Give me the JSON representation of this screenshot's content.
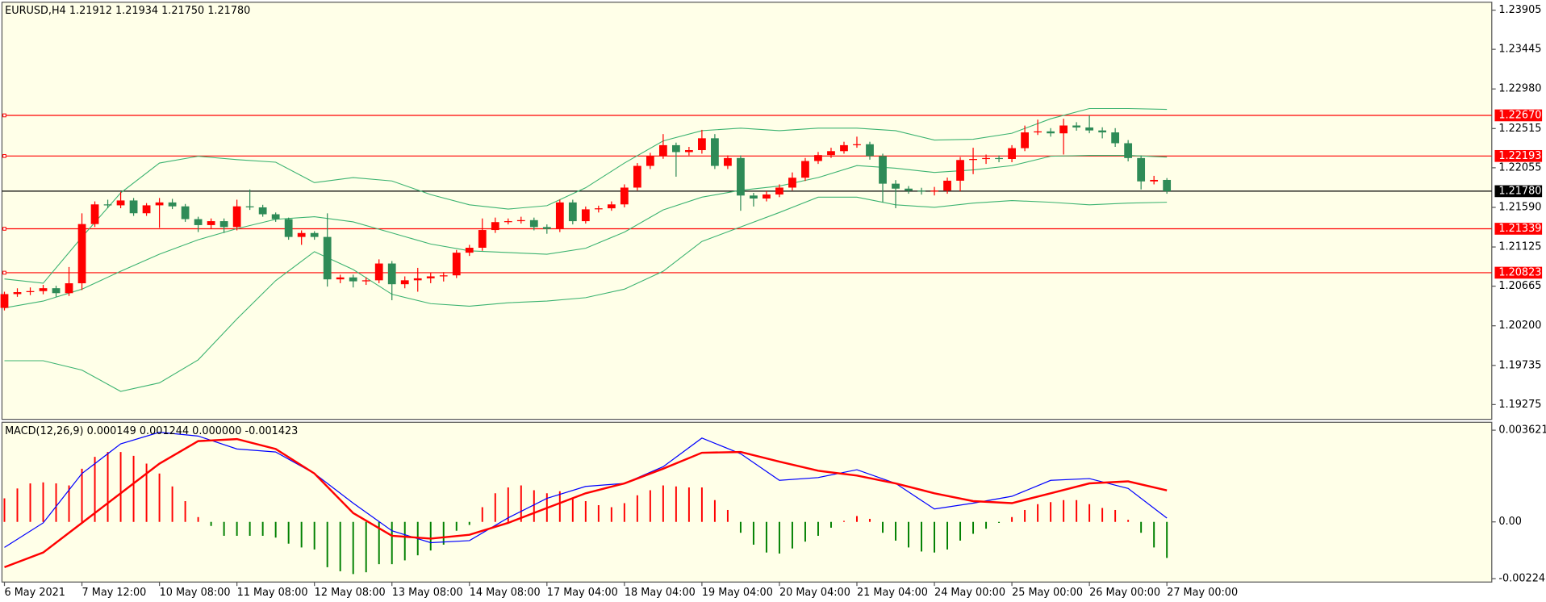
{
  "chart_data": {
    "type": "candlestick",
    "title": "EURUSD,H4  1.21912 1.21934 1.21750 1.21780",
    "categories": [
      "6 May 2021",
      null,
      null,
      null,
      null,
      null,
      "7 May 12:00",
      null,
      null,
      null,
      null,
      null,
      "10 May 08:00",
      null,
      null,
      null,
      null,
      null,
      "11 May 08:00",
      null,
      null,
      null,
      null,
      null,
      "12 May 08:00",
      null,
      null,
      null,
      null,
      null,
      "13 May 08:00",
      null,
      null,
      null,
      null,
      null,
      "14 May 08:00",
      null,
      null,
      null,
      null,
      null,
      "17 May 04:00",
      null,
      null,
      null,
      null,
      null,
      "18 May 04:00",
      null,
      null,
      null,
      null,
      null,
      "19 May 04:00",
      null,
      null,
      null,
      null,
      null,
      "20 May 04:00",
      null,
      null,
      null,
      null,
      null,
      "21 May 04:00",
      null,
      null,
      null,
      null,
      null,
      "24 May 00:00",
      null,
      null,
      null,
      null,
      null,
      "25 May 00:00",
      null,
      null,
      null,
      null,
      null,
      "26 May 00:00",
      null,
      null,
      null,
      null,
      null,
      "27 May 00:00"
    ],
    "open": [
      1.2041,
      1.20572,
      1.20595,
      1.20607,
      1.20641,
      1.20583,
      1.20699,
      1.21394,
      1.21625,
      1.21614,
      1.21671,
      1.21521,
      1.21614,
      1.21648,
      1.21602,
      1.21452,
      1.21382,
      1.21428,
      1.21359,
      1.21602,
      1.2159,
      1.21509,
      1.21452,
      1.21243,
      1.21289,
      1.21243,
      1.20745,
      1.20768,
      1.20722,
      1.20734,
      1.20931,
      1.20688,
      1.20734,
      1.20757,
      1.2078,
      1.20792,
      1.21058,
      1.21116,
      1.21324,
      1.21417,
      1.21428,
      1.2144,
      1.21359,
      1.21336,
      1.21648,
      1.21428,
      1.21567,
      1.21579,
      1.21625,
      1.21822,
      1.22077,
      1.22192,
      1.2232,
      1.22239,
      1.22262,
      1.22401,
      1.22077,
      1.22169,
      1.21729,
      1.21694,
      1.21741,
      1.21822,
      1.21938,
      1.22134,
      1.22204,
      1.2225,
      1.2232,
      1.22331,
      1.22192,
      1.21868,
      1.2181,
      1.21787,
      1.21775,
      1.21787,
      1.21903,
      1.22146,
      1.22158,
      1.22169,
      1.22158,
      1.22285,
      1.2247,
      1.22482,
      1.22459,
      1.22551,
      1.22528,
      1.22493,
      1.2247,
      1.22343,
      1.22169,
      1.21895,
      1.21912
    ],
    "high": [
      1.206,
      1.2064,
      1.2065,
      1.2068,
      1.2067,
      1.2089,
      1.2152,
      1.2166,
      1.2168,
      1.2177,
      1.217,
      1.2164,
      1.217,
      1.2169,
      1.2163,
      1.2148,
      1.2146,
      1.2146,
      1.2168,
      1.218,
      1.2162,
      1.2153,
      1.2147,
      1.2132,
      1.2131,
      1.2152,
      1.208,
      1.208,
      1.2077,
      1.2098,
      1.2096,
      1.2078,
      1.2088,
      1.2082,
      1.2083,
      1.2109,
      1.2115,
      1.2146,
      1.2147,
      1.2146,
      1.2148,
      1.2147,
      1.2139,
      1.2168,
      1.2168,
      1.216,
      1.2161,
      1.2166,
      1.2186,
      1.2211,
      1.2223,
      1.2245,
      1.2235,
      1.223,
      1.225,
      1.2245,
      1.222,
      1.222,
      1.2176,
      1.2178,
      1.2186,
      1.22,
      1.2217,
      1.2224,
      1.2229,
      1.2236,
      1.2242,
      1.2236,
      1.2222,
      1.2191,
      1.2184,
      1.2182,
      1.2183,
      1.2194,
      1.2218,
      1.2229,
      1.2221,
      1.222,
      1.2232,
      1.2255,
      1.2262,
      1.2252,
      1.2263,
      1.2259,
      1.2267,
      1.2253,
      1.2252,
      1.2238,
      1.222,
      1.2196,
      1.21934
    ],
    "low": [
      1.2038,
      1.2054,
      1.2056,
      1.2057,
      1.2054,
      1.2055,
      1.2062,
      1.2136,
      1.2158,
      1.2158,
      1.2149,
      1.2149,
      1.2135,
      1.2157,
      1.2142,
      1.213,
      1.2134,
      1.2129,
      1.2132,
      1.2156,
      1.2148,
      1.2142,
      1.2121,
      1.2115,
      1.2121,
      1.2066,
      1.207,
      1.2065,
      1.2068,
      1.207,
      1.205,
      1.2064,
      1.206,
      1.207,
      1.2072,
      1.2076,
      1.2102,
      1.2108,
      1.2129,
      1.2139,
      1.214,
      1.2132,
      1.2128,
      1.213,
      1.2139,
      1.214,
      1.2153,
      1.2155,
      1.2159,
      1.2179,
      1.2204,
      1.2216,
      1.2195,
      1.222,
      1.2222,
      1.2204,
      1.2204,
      1.2155,
      1.216,
      1.2166,
      1.2171,
      1.2179,
      1.219,
      1.221,
      1.2217,
      1.2222,
      1.2229,
      1.2215,
      1.2165,
      1.2158,
      1.2175,
      1.2174,
      1.2173,
      1.2175,
      1.2178,
      1.2198,
      1.221,
      1.2212,
      1.2212,
      1.2225,
      1.2244,
      1.2242,
      1.2221,
      1.2249,
      1.2246,
      1.224,
      1.223,
      1.2213,
      1.218,
      1.2186,
      1.2175
    ],
    "close": [
      1.20572,
      1.20595,
      1.20607,
      1.20641,
      1.20583,
      1.20699,
      1.21394,
      1.21625,
      1.21614,
      1.21671,
      1.21521,
      1.21614,
      1.21648,
      1.21602,
      1.21452,
      1.21382,
      1.21428,
      1.21359,
      1.21602,
      1.2159,
      1.21509,
      1.21452,
      1.21243,
      1.21289,
      1.21243,
      1.20745,
      1.20768,
      1.20722,
      1.20734,
      1.20931,
      1.20688,
      1.20734,
      1.20757,
      1.2078,
      1.20792,
      1.21058,
      1.21116,
      1.21324,
      1.21417,
      1.21428,
      1.2144,
      1.21359,
      1.21336,
      1.21648,
      1.21428,
      1.21567,
      1.21579,
      1.21625,
      1.21822,
      1.22077,
      1.22192,
      1.2232,
      1.22239,
      1.22262,
      1.22401,
      1.22077,
      1.22169,
      1.21729,
      1.21694,
      1.21741,
      1.21822,
      1.21938,
      1.22134,
      1.22204,
      1.2225,
      1.2232,
      1.22331,
      1.22192,
      1.21868,
      1.2181,
      1.21787,
      1.21775,
      1.21787,
      1.21903,
      1.22146,
      1.22158,
      1.22169,
      1.22158,
      1.22285,
      1.2247,
      1.22482,
      1.22459,
      1.22551,
      1.22528,
      1.22493,
      1.2247,
      1.22343,
      1.22169,
      1.21895,
      1.21912,
      1.2178
    ],
    "up_color": "#ff0000",
    "down_color": "#2e8b57",
    "ylim": [
      1.19102,
      1.23998
    ],
    "yticks": [
      1.23905,
      1.23445,
      {
        "value": 1.2298,
        "label": "1.22980"
      },
      1.22515,
      1.22055,
      {
        "value": 1.2159,
        "label": "1.21590"
      },
      1.21125,
      1.20665,
      {
        "value": 1.202,
        "label": "1.20200"
      },
      1.19735,
      1.19275
    ],
    "levels": [
      {
        "value": 1.2267,
        "label": "1.22670"
      },
      {
        "value": 1.22193,
        "label": "1.22193"
      },
      {
        "value": 1.21339,
        "label": "1.21339"
      },
      {
        "value": 1.20823,
        "label": "1.20823"
      }
    ],
    "level_color": "#ff0000",
    "current": {
      "value": 1.2178,
      "label": "1.21780"
    },
    "band_at": [
      0,
      3,
      6,
      9,
      12,
      15,
      18,
      21,
      24,
      27,
      30,
      33,
      36,
      39,
      42,
      45,
      48,
      51,
      54,
      57,
      60,
      63,
      66,
      69,
      72,
      75,
      78,
      81,
      84,
      87,
      90
    ],
    "bands": {
      "color": "#3cb371",
      "upper": [
        1.2075,
        1.207,
        1.2124,
        1.2176,
        1.2211,
        1.2219,
        1.2215,
        1.2212,
        1.2188,
        1.2194,
        1.219,
        1.2174,
        1.2162,
        1.2157,
        1.2161,
        1.2182,
        1.2211,
        1.2237,
        1.2249,
        1.2252,
        1.2249,
        1.2252,
        1.2252,
        1.2249,
        1.2238,
        1.2239,
        1.2246,
        1.2263,
        1.2275,
        1.2275,
        1.2274
      ],
      "middle": [
        1.2041,
        1.2049,
        1.2063,
        1.2084,
        1.2104,
        1.2121,
        1.2134,
        1.2145,
        1.2148,
        1.2142,
        1.2129,
        1.2116,
        1.2108,
        1.2106,
        1.2104,
        1.2111,
        1.213,
        1.2156,
        1.2171,
        1.2179,
        1.2184,
        1.2194,
        1.2208,
        1.2205,
        1.22,
        1.2203,
        1.2208,
        1.2219,
        1.222,
        1.222,
        1.2218
      ],
      "lower": [
        1.1979,
        1.1979,
        1.1968,
        1.1943,
        1.1953,
        1.198,
        1.2028,
        1.2073,
        1.2107,
        1.2086,
        1.2057,
        1.2046,
        1.2043,
        1.2047,
        1.2049,
        1.2053,
        1.2063,
        1.2084,
        1.2119,
        1.2136,
        1.2153,
        1.2171,
        1.2171,
        1.2162,
        1.2159,
        1.2164,
        1.2167,
        1.2165,
        1.2162,
        1.2164,
        1.2165
      ]
    },
    "macd": {
      "title": "MACD(12,26,9) 0.000149 0.001244 0.000000 -0.001423",
      "ylim": [
        -0.002375,
        0.003933
      ],
      "yticks": [
        0.003621,
        {
          "value": 0,
          "label": "0.00"
        },
        -0.002241
      ],
      "positive_color": "#ff0000",
      "negative_color": "#008000",
      "histogram": [
        0.00093,
        0.00132,
        0.00152,
        0.00156,
        0.00152,
        0.00144,
        0.0021,
        0.00257,
        0.00276,
        0.00276,
        0.00261,
        0.0023,
        0.00191,
        0.0014,
        0.00082,
        0.00019,
        -0.00016,
        -0.00055,
        -0.00055,
        -0.00055,
        -0.00055,
        -0.00062,
        -0.00086,
        -0.00101,
        -0.00109,
        -0.00179,
        -0.00195,
        -0.00206,
        -0.00199,
        -0.00167,
        -0.00167,
        -0.00152,
        -0.00132,
        -0.00113,
        -0.0009,
        -0.00035,
        -0.00012,
        0.00058,
        0.00113,
        0.00136,
        0.00144,
        0.00125,
        0.00113,
        0.00121,
        0.00093,
        0.00082,
        0.00066,
        0.00058,
        0.00074,
        0.00105,
        0.00125,
        0.00144,
        0.0014,
        0.00136,
        0.00136,
        0.00086,
        0.00047,
        -0.00043,
        -0.0009,
        -0.00121,
        -0.00125,
        -0.00105,
        -0.00078,
        -0.00055,
        -0.00023,
        4e-05,
        0.00023,
        0.00012,
        -0.00043,
        -0.00074,
        -0.00101,
        -0.00117,
        -0.00121,
        -0.00109,
        -0.00074,
        -0.00047,
        -0.00027,
        -4e-05,
        0.00019,
        0.00047,
        0.0007,
        0.00078,
        0.00086,
        0.00086,
        0.0007,
        0.00055,
        0.00047,
        8e-05,
        -0.00043,
        -0.00101,
        -0.001423
      ],
      "main_color": "#0000ff",
      "main": [
        -0.00101,
        -4e-05,
        0.00191,
        0.00308,
        0.00354,
        0.00339,
        0.00288,
        0.00276,
        0.00191,
        0.00074,
        -0.00035,
        -0.00082,
        -0.00074,
        0.00016,
        0.00093,
        0.0014,
        0.00152,
        0.00218,
        0.00331,
        0.00269,
        0.00164,
        0.00175,
        0.00206,
        0.00152,
        0.00051,
        0.00074,
        0.00101,
        0.00164,
        0.00171,
        0.00132,
        0.000149
      ],
      "signal_color": "#ff0000",
      "signal": [
        -0.00179,
        -0.00121,
        -4e-05,
        0.00113,
        0.0023,
        0.00319,
        0.00327,
        0.00288,
        0.00191,
        0.00035,
        -0.00055,
        -0.00066,
        -0.00051,
        -4e-05,
        0.00055,
        0.00113,
        0.00152,
        0.0021,
        0.00273,
        0.00276,
        0.00238,
        0.00202,
        0.00183,
        0.00152,
        0.00113,
        0.00082,
        0.00074,
        0.00113,
        0.00152,
        0.0016,
        0.001244
      ]
    }
  }
}
